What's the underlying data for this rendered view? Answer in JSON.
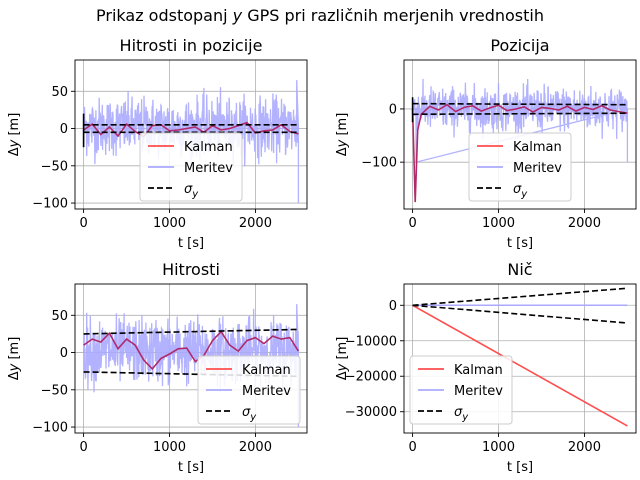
{
  "suptitle": {
    "pre": "Prikaz odstopanj ",
    "var": "y",
    "post": " GPS pri različnih merjenih vrednostih"
  },
  "colors": {
    "kalman": "#ff4d4d",
    "meritev": "#aaaaff",
    "sigma": "#000000",
    "overlap": "#b02a6a"
  },
  "chart_data": [
    {
      "type": "line",
      "title": "Hitrosti in pozicije",
      "xlabel": "t [s]",
      "ylabel": "Δy [m]",
      "xlim": [
        -100,
        2600
      ],
      "ylim": [
        -108,
        92
      ],
      "xticks": [
        0,
        1000,
        2000
      ],
      "yticks": [
        -100,
        -50,
        0,
        50
      ],
      "xtick_labels": [
        "0",
        "1000",
        "2000"
      ],
      "ytick_labels": [
        "−100",
        "−50",
        "0",
        "50"
      ],
      "grid": true,
      "legend": "lower-center",
      "legend_labels": [
        "Kalman",
        "Meritev",
        "σ_y"
      ],
      "series": [
        {
          "name": "Kalman",
          "x": [
            0,
            100,
            200,
            300,
            400,
            500,
            600,
            700,
            800,
            900,
            1000,
            1100,
            1200,
            1300,
            1400,
            1500,
            1600,
            1700,
            1800,
            1900,
            2000,
            2100,
            2200,
            2300,
            2400,
            2500
          ],
          "values": [
            -2,
            6,
            -8,
            2,
            -10,
            6,
            -4,
            -11,
            4,
            5,
            -3,
            -2,
            0,
            2,
            -5,
            4,
            -2,
            0,
            4,
            8,
            -6,
            -3,
            -2,
            5,
            -4,
            -7
          ]
        },
        {
          "name": "Meritev",
          "band": [
            -40,
            45
          ],
          "extremes": [
            [
              2500,
              -100
            ],
            [
              2480,
              65
            ]
          ]
        },
        {
          "name": "σ_y",
          "upper": [
            [
              0,
              5
            ],
            [
              2500,
              5
            ]
          ],
          "lower": [
            [
              0,
              -5
            ],
            [
              2500,
              -5
            ]
          ]
        }
      ]
    },
    {
      "type": "line",
      "title": "Pozicija",
      "xlabel": "t [s]",
      "ylabel": "Δy [m]",
      "xlim": [
        -100,
        2600
      ],
      "ylim": [
        -188,
        92
      ],
      "xticks": [
        0,
        1000,
        2000
      ],
      "yticks": [
        -100,
        0
      ],
      "xtick_labels": [
        "0",
        "1000",
        "2000"
      ],
      "ytick_labels": [
        "−100",
        "0"
      ],
      "grid": true,
      "legend": "lower-center",
      "legend_labels": [
        "Kalman",
        "Meritev",
        "σ_y"
      ],
      "series": [
        {
          "name": "Kalman",
          "x": [
            0,
            30,
            60,
            100,
            200,
            300,
            400,
            500,
            600,
            700,
            800,
            900,
            1000,
            1100,
            1200,
            1300,
            1400,
            1500,
            1600,
            1700,
            1800,
            1900,
            2000,
            2100,
            2200,
            2300,
            2400,
            2500
          ],
          "values": [
            0,
            -175,
            -40,
            -10,
            5,
            -2,
            8,
            -5,
            3,
            6,
            -4,
            2,
            7,
            -3,
            0,
            4,
            -6,
            3,
            1,
            -2,
            5,
            -4,
            3,
            -1,
            6,
            -2,
            -5,
            -8
          ]
        },
        {
          "name": "Meritev",
          "band": [
            -45,
            45
          ],
          "extremes": [
            [
              2500,
              -100
            ],
            [
              40,
              -100
            ]
          ]
        },
        {
          "name": "σ_y",
          "upper": [
            [
              0,
              10
            ],
            [
              2500,
              8
            ]
          ],
          "lower": [
            [
              0,
              -10
            ],
            [
              2500,
              -8
            ]
          ]
        }
      ]
    },
    {
      "type": "line",
      "title": "Hitrosti",
      "xlabel": "t [s]",
      "ylabel": "Δy [m]",
      "xlim": [
        -100,
        2600
      ],
      "ylim": [
        -108,
        92
      ],
      "xticks": [
        0,
        1000,
        2000
      ],
      "yticks": [
        -100,
        -50,
        0,
        50
      ],
      "xtick_labels": [
        "0",
        "1000",
        "2000"
      ],
      "ytick_labels": [
        "−100",
        "−50",
        "0",
        "50"
      ],
      "grid": true,
      "legend": "lower-right",
      "legend_labels": [
        "Kalman",
        "Meritev",
        "σ_y"
      ],
      "series": [
        {
          "name": "Kalman",
          "x": [
            0,
            100,
            200,
            300,
            400,
            500,
            600,
            700,
            800,
            900,
            1000,
            1100,
            1200,
            1300,
            1400,
            1500,
            1600,
            1700,
            1800,
            1900,
            2000,
            2100,
            2200,
            2300,
            2400,
            2500
          ],
          "values": [
            10,
            18,
            14,
            26,
            5,
            18,
            10,
            -10,
            -22,
            -8,
            -2,
            5,
            6,
            -12,
            -4,
            16,
            28,
            10,
            2,
            16,
            20,
            12,
            22,
            18,
            20,
            2
          ]
        },
        {
          "name": "Meritev",
          "band": [
            -45,
            50
          ],
          "extremes": [
            [
              2500,
              -100
            ],
            [
              2480,
              65
            ]
          ]
        },
        {
          "name": "σ_y",
          "upper": [
            [
              0,
              25
            ],
            [
              2500,
              31
            ]
          ],
          "lower": [
            [
              0,
              -26
            ],
            [
              2500,
              -32
            ]
          ]
        }
      ]
    },
    {
      "type": "line",
      "title": "Nič",
      "xlabel": "t [s]",
      "ylabel": "Δy [m]",
      "xlim": [
        -100,
        2600
      ],
      "ylim": [
        -36000,
        6000
      ],
      "xticks": [
        0,
        1000,
        2000
      ],
      "yticks": [
        -30000,
        -20000,
        -10000,
        0
      ],
      "xtick_labels": [
        "0",
        "1000",
        "2000"
      ],
      "ytick_labels": [
        "−30000",
        "−20000",
        "−10000",
        "0"
      ],
      "grid": true,
      "legend": "lower-left",
      "legend_labels": [
        "Kalman",
        "Meritev",
        "σ_y"
      ],
      "series": [
        {
          "name": "Kalman",
          "x": [
            0,
            2500
          ],
          "values": [
            0,
            -34000
          ]
        },
        {
          "name": "Meritev",
          "x": [
            0,
            2500
          ],
          "values": [
            0,
            0
          ]
        },
        {
          "name": "σ_y",
          "upper": [
            [
              0,
              0
            ],
            [
              2500,
              4800
            ]
          ],
          "lower": [
            [
              0,
              0
            ],
            [
              2500,
              -5000
            ]
          ]
        }
      ]
    }
  ]
}
